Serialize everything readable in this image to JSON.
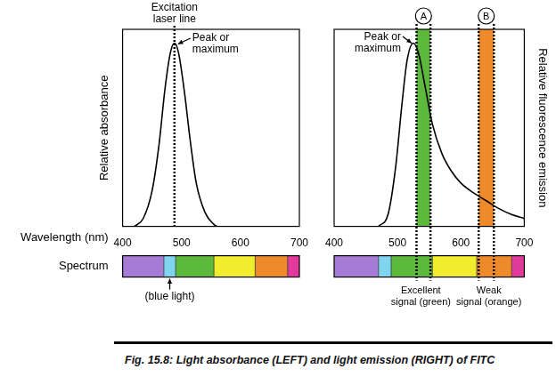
{
  "caption": "Fig. 15.8: Light absorbance (LEFT) and light emission (RIGHT) of FITC",
  "chart_data": [
    {
      "type": "line",
      "x_label": "Wavelength (nm)",
      "y_label": "Relative absorbance",
      "spectrum_label": "Spectrum",
      "x": [
        420,
        435,
        450,
        462,
        472,
        481,
        488,
        495,
        505,
        515,
        525,
        540,
        555,
        560
      ],
      "values": [
        0,
        0.04,
        0.18,
        0.42,
        0.7,
        0.88,
        0.93,
        0.88,
        0.68,
        0.43,
        0.22,
        0.07,
        0.01,
        0
      ],
      "color": "#000000",
      "xlim": [
        400,
        700
      ],
      "xticks": [
        400,
        500,
        600,
        700
      ],
      "ylim": [
        0,
        1
      ],
      "grid": false,
      "tick_labels": "x",
      "laser_line": {
        "x": 488,
        "label": [
          "Excitation",
          "laser line"
        ]
      },
      "peak": {
        "x": 488,
        "y": 0.93,
        "label": [
          "Peak or",
          "maximum"
        ]
      },
      "spectrum": [
        {
          "from": 400,
          "to": 470,
          "color": "#a57bd5"
        },
        {
          "from": 470,
          "to": 490,
          "color": "#7fd4ee"
        },
        {
          "from": 490,
          "to": 555,
          "color": "#5cb93c"
        },
        {
          "from": 555,
          "to": 625,
          "color": "#f2ec2e"
        },
        {
          "from": 625,
          "to": 680,
          "color": "#ef8a2a"
        },
        {
          "from": 680,
          "to": 700,
          "color": "#e23a9c"
        }
      ],
      "spectrum_marker": {
        "x": 480,
        "label": "(blue light)"
      }
    },
    {
      "type": "line",
      "y_label": "Relative fluorescence emission",
      "x": [
        470,
        485,
        497,
        507,
        515,
        525,
        533,
        543,
        555,
        570,
        585,
        600,
        620,
        640,
        660,
        680,
        700
      ],
      "values": [
        0,
        0.06,
        0.3,
        0.62,
        0.84,
        0.93,
        0.88,
        0.72,
        0.52,
        0.37,
        0.28,
        0.22,
        0.17,
        0.13,
        0.09,
        0.06,
        0.04
      ],
      "color": "#000000",
      "xlim": [
        400,
        700
      ],
      "xticks": [
        400,
        500,
        600,
        700
      ],
      "ylim": [
        0,
        1
      ],
      "grid": false,
      "tick_labels": "x",
      "peak": {
        "x": 525,
        "y": 0.93,
        "label": [
          "Peak or",
          "maximum"
        ]
      },
      "bands": [
        {
          "label": "A",
          "from": 530,
          "to": 552,
          "color": "#5cb93c",
          "caption": [
            "Excellent",
            "signal (green)"
          ]
        },
        {
          "label": "B",
          "from": 628,
          "to": 652,
          "color": "#ef8a2a",
          "caption": [
            "Weak",
            "signal (orange)"
          ]
        }
      ],
      "spectrum": [
        {
          "from": 400,
          "to": 470,
          "color": "#a57bd5"
        },
        {
          "from": 470,
          "to": 490,
          "color": "#7fd4ee"
        },
        {
          "from": 490,
          "to": 555,
          "color": "#5cb93c"
        },
        {
          "from": 555,
          "to": 625,
          "color": "#f2ec2e"
        },
        {
          "from": 625,
          "to": 680,
          "color": "#ef8a2a"
        },
        {
          "from": 680,
          "to": 700,
          "color": "#e23a9c"
        }
      ]
    }
  ]
}
